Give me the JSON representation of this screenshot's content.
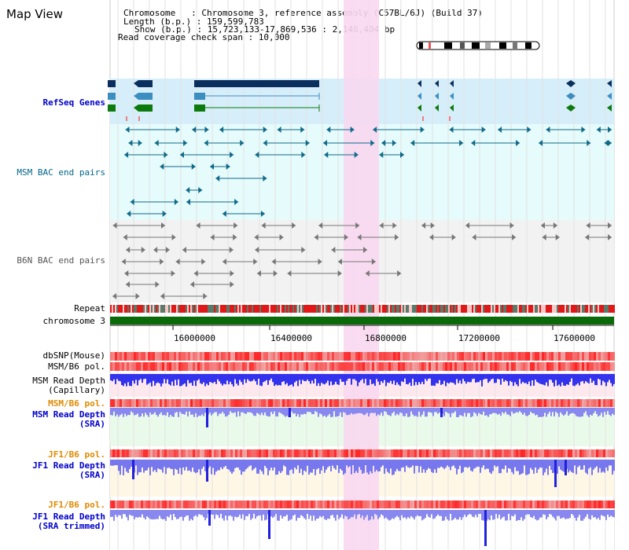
{
  "panel_title": "Map View",
  "header": {
    "chromosome_line": "Chromosome   : Chromosome 3, reference assembly (C57BL/6J) (Build 37)",
    "length_line": "Length (b.p.) : 159,599,783",
    "show_line": "Show (b.p.) : 15,723,133-17,869,536 : 2,146,404 bp",
    "coverage_line": "Read coverage check span : 10,000"
  },
  "ruler": {
    "ticks": [
      "16000000",
      "16400000",
      "16800000",
      "17200000",
      "17600000"
    ]
  },
  "tracks": {
    "refseq": {
      "label": "RefSeq Genes"
    },
    "msm_bac": {
      "label": "MSM BAC end pairs"
    },
    "b6n_bac": {
      "label": "B6N BAC end pairs"
    },
    "repeat": {
      "label": "Repeat"
    },
    "chromosome": {
      "label": "chromosome 3"
    },
    "dbsnp": {
      "label": "dbSNP(Mouse)"
    },
    "msm_b6_pol_1": {
      "label": "MSM/B6 pol."
    },
    "msm_depth_cap": {
      "label_1": "MSM Read Depth",
      "label_2": "(Capillary)"
    },
    "msm_b6_pol_2": {
      "label": "MSM/B6 pol."
    },
    "msm_depth_sra": {
      "label_1": "MSM Read Depth",
      "label_2": "(SRA)"
    },
    "jf1_b6_pol_1": {
      "label": "JF1/B6 pol."
    },
    "jf1_depth_sra": {
      "label_1": "JF1 Read Depth",
      "label_2": "(SRA)"
    },
    "jf1_b6_pol_2": {
      "label": "JF1/B6 pol."
    },
    "jf1_depth_trim": {
      "label_1": "JF1 Read Depth",
      "label_2": "(SRA trimmed)"
    }
  },
  "colors": {
    "refseq_label": "#0000cc",
    "msm_bac_label": "#006688",
    "b6n_bac_label": "#555555",
    "pol_orange": "#e08a00",
    "depth_blue": "#0000cc",
    "highlight": "#f8d8f0"
  }
}
